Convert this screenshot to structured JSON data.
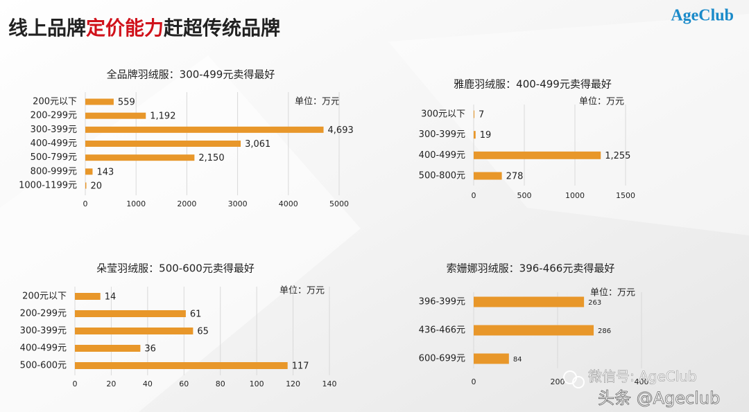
{
  "header": {
    "title_parts": [
      "线上品牌",
      "定价能力",
      "赶超传统品牌"
    ],
    "logo": "AgeClub"
  },
  "watermark": {
    "wechat": "微信号: AgeClub",
    "toutiao": "头条 @Ageclub"
  },
  "chart_data": [
    {
      "type": "bar",
      "orientation": "horizontal",
      "title": "全品牌羽绒服：300-499元卖得最好",
      "unit": "单位：万元",
      "categories": [
        "200元以下",
        "200-299元",
        "300-399元",
        "400-499元",
        "500-799元",
        "800-999元",
        "1000-1199元"
      ],
      "values": [
        559,
        1192,
        4693,
        3061,
        2150,
        143,
        20
      ],
      "value_labels": [
        "559",
        "1,192",
        "4,693",
        "3,061",
        "2,150",
        "143",
        "20"
      ],
      "xlim": [
        0,
        5000
      ],
      "xticks": [
        0,
        1000,
        2000,
        3000,
        4000,
        5000
      ],
      "grid": true,
      "color": "#e8972a"
    },
    {
      "type": "bar",
      "orientation": "horizontal",
      "title": "雅鹿羽绒服：400-499元卖得最好",
      "unit": "单位：万元",
      "categories": [
        "300元以下",
        "300-399元",
        "400-499元",
        "500-800元"
      ],
      "values": [
        7,
        19,
        1255,
        278
      ],
      "value_labels": [
        "7",
        "19",
        "1,255",
        "278"
      ],
      "xlim": [
        0,
        1500
      ],
      "xticks": [
        0,
        500,
        1000,
        1500
      ],
      "grid": true,
      "color": "#e8972a"
    },
    {
      "type": "bar",
      "orientation": "horizontal",
      "title": "朵莹羽绒服：500-600元卖得最好",
      "unit": "单位：万元",
      "categories": [
        "200元以下",
        "200-299元",
        "300-399元",
        "400-499元",
        "500-600元"
      ],
      "values": [
        14,
        61,
        65,
        36,
        117
      ],
      "xlim": [
        0,
        140
      ],
      "xticks": [
        0,
        20,
        40,
        60,
        80,
        100,
        120,
        140
      ],
      "grid": true,
      "color": "#e8972a"
    },
    {
      "type": "bar",
      "orientation": "horizontal",
      "title": "索姗娜羽绒服：396-466元卖得最好",
      "unit": "单位：万元",
      "categories": [
        "396-399元",
        "436-466元",
        "600-699元"
      ],
      "values": [
        263,
        286,
        84
      ],
      "xlim": [
        0,
        400
      ],
      "xticks": [
        0,
        200,
        400
      ],
      "grid": true,
      "color": "#e8972a"
    }
  ]
}
